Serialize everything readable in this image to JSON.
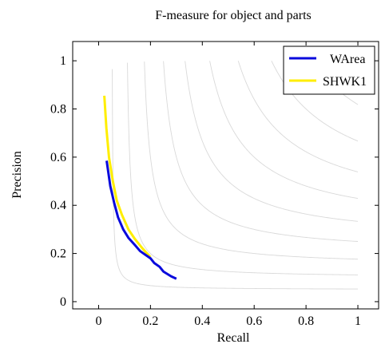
{
  "chart_data": {
    "type": "line",
    "title": "F-measure for object and parts",
    "xlabel": "Recall",
    "ylabel": "Precision",
    "xlim": [
      -0.1,
      1.08
    ],
    "ylim": [
      -0.03,
      1.08
    ],
    "xticks": [
      0,
      0.2,
      0.4,
      0.6,
      0.8,
      1
    ],
    "yticks": [
      0,
      0.2,
      0.4,
      0.6,
      0.8,
      1
    ],
    "xtick_labels": [
      "0",
      "0.2",
      "0.4",
      "0.6",
      "0.8",
      "1"
    ],
    "ytick_labels": [
      "0",
      "0.2",
      "0.4",
      "0.6",
      "0.8",
      "1"
    ],
    "legend_position": "top-right",
    "iso_f_curves": [
      0.1,
      0.2,
      0.3,
      0.4,
      0.5,
      0.6,
      0.7,
      0.8,
      0.9
    ],
    "series": [
      {
        "name": "WArea",
        "color": "#0a0adc",
        "x": [
          0.031,
          0.045,
          0.06,
          0.075,
          0.095,
          0.115,
          0.14,
          0.16,
          0.18,
          0.2,
          0.215,
          0.235,
          0.25,
          0.28,
          0.3
        ],
        "y": [
          0.585,
          0.48,
          0.41,
          0.35,
          0.3,
          0.265,
          0.235,
          0.21,
          0.195,
          0.18,
          0.16,
          0.145,
          0.125,
          0.105,
          0.095
        ]
      },
      {
        "name": "SHWK1",
        "color": "#ffee00",
        "x": [
          0.022,
          0.03,
          0.04,
          0.055,
          0.07,
          0.09,
          0.115,
          0.14,
          0.17,
          0.2
        ],
        "y": [
          0.855,
          0.72,
          0.6,
          0.5,
          0.42,
          0.36,
          0.3,
          0.26,
          0.22,
          0.185
        ]
      }
    ]
  }
}
